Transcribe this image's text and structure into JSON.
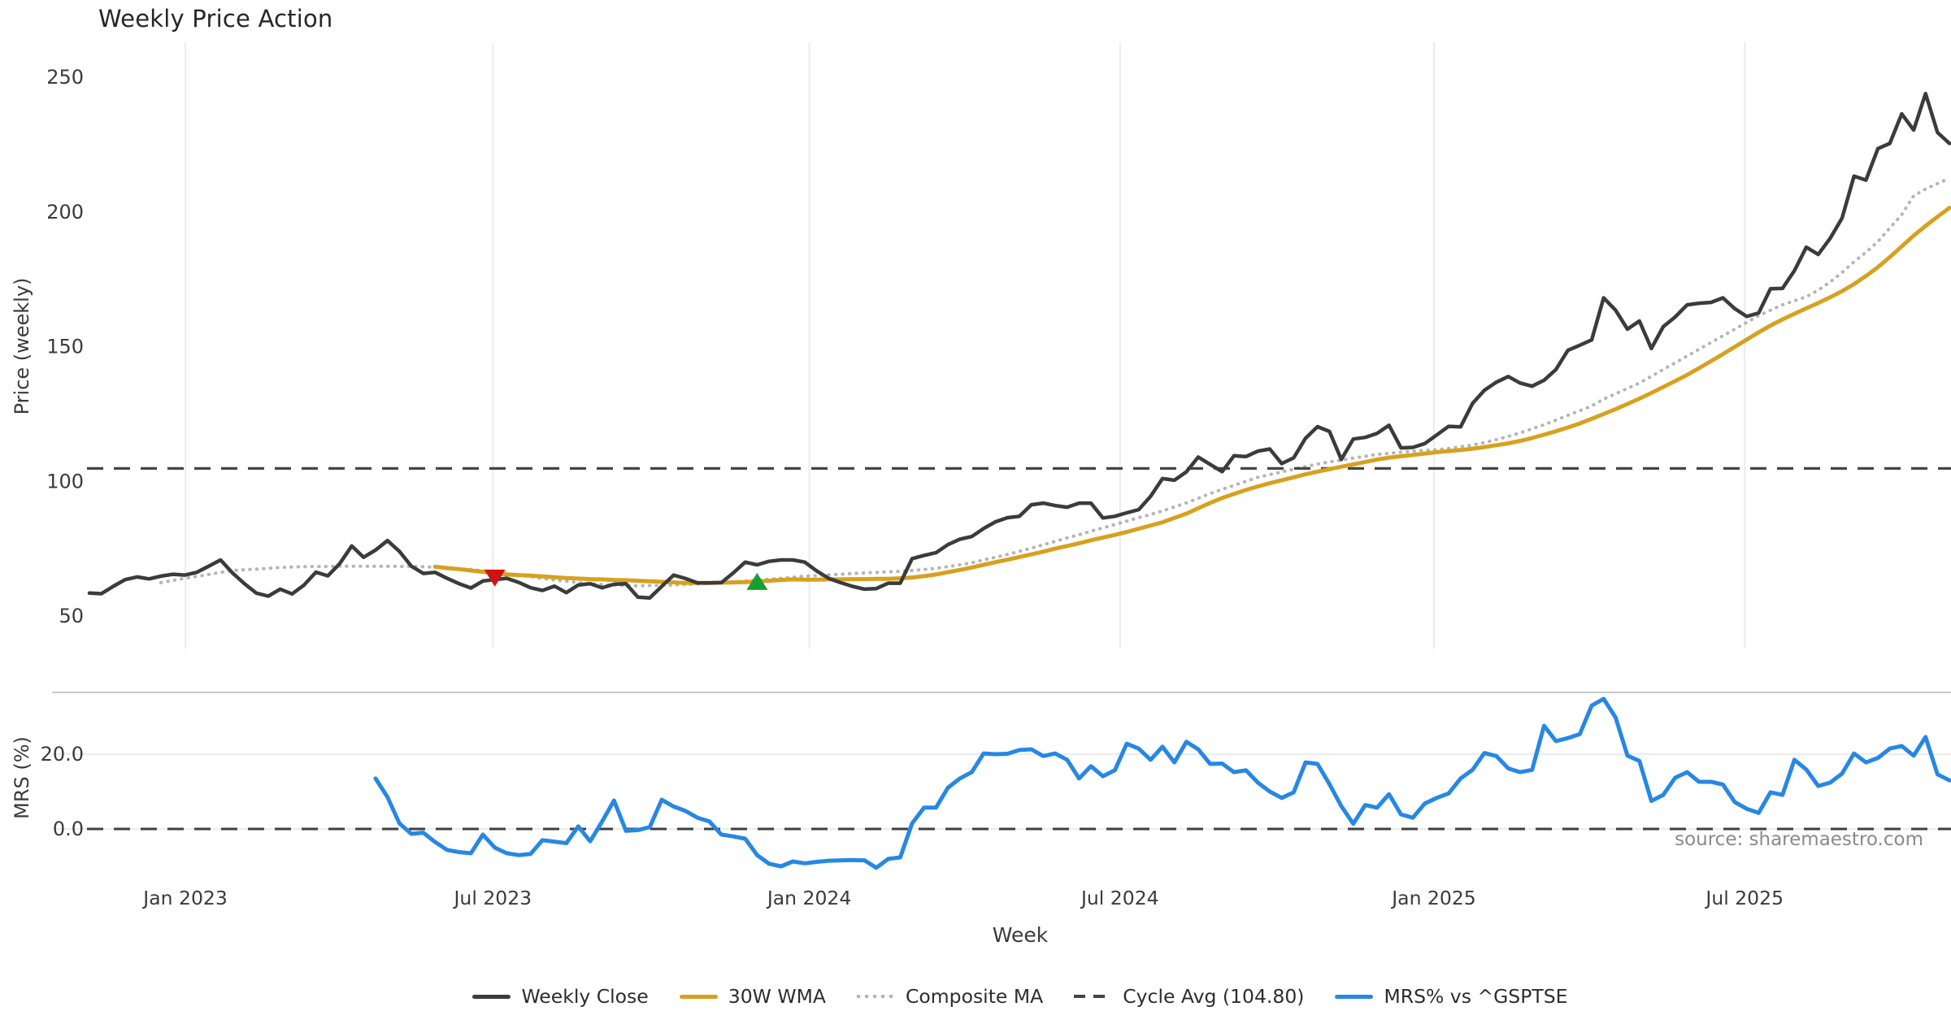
{
  "title": "Weekly Price Action",
  "source_note": "source: sharemaestro.com",
  "axes": {
    "price": {
      "label": "Price (weekly)",
      "ticks": [
        "250",
        "200",
        "150",
        "100",
        "50"
      ],
      "tick_values": [
        250,
        200,
        150,
        100,
        50
      ]
    },
    "mrs": {
      "label": "MRS (%)",
      "ticks": [
        "20.0",
        "0.0"
      ],
      "tick_values": [
        20,
        0
      ]
    },
    "x": {
      "label": "Week",
      "ticks": [
        "Jan 2023",
        "Jul 2023",
        "Jan 2024",
        "Jul 2024",
        "Jan 2025",
        "Jul 2025"
      ],
      "tick_weeks": [
        8.05,
        33.84,
        60.38,
        86.44,
        112.77,
        138.83
      ]
    }
  },
  "legend": [
    {
      "label": "Weekly Close",
      "color": "#3b3b3b",
      "style": "solid"
    },
    {
      "label": "30W WMA",
      "color": "#d7a11f",
      "style": "solid"
    },
    {
      "label": "Composite MA",
      "color": "#b5b5b5",
      "style": "dotted"
    },
    {
      "label": "Cycle Avg (104.80)",
      "color": "#454545",
      "style": "dashed"
    },
    {
      "label": "MRS% vs ^GSPTSE",
      "color": "#2787e4",
      "style": "solid"
    }
  ],
  "chart_data": {
    "type": "line",
    "x_unit": "week_index_from_2022-11-07",
    "weeks_total": 157,
    "grid": {
      "top_panel_vertical": true,
      "bottom_panel_horizontal": true
    },
    "panels": [
      {
        "name": "price",
        "ylabel": "Price (weekly)",
        "ylim": [
          45,
          255
        ],
        "series": [
          {
            "name": "Weekly Close",
            "color": "#3b3b3b",
            "style": "solid",
            "width": 4.5,
            "start_week": 0,
            "values": [
              58.5,
              58.3,
              61.0,
              63.5,
              64.5,
              63.8,
              64.8,
              65.5,
              65.2,
              66.2,
              68.5,
              70.8,
              66.0,
              62.0,
              58.5,
              57.4,
              60.0,
              58.2,
              61.5,
              66.3,
              64.9,
              69.5,
              76.0,
              71.8,
              74.5,
              78.0,
              74.0,
              68.5,
              65.8,
              66.2,
              64.0,
              62.0,
              60.4,
              63.0,
              63.5,
              64.0,
              62.5,
              60.5,
              59.5,
              61.1,
              58.7,
              61.5,
              62.0,
              60.5,
              61.8,
              62.0,
              57.0,
              56.7,
              61.0,
              65.2,
              63.9,
              62.3,
              62.3,
              62.4,
              66.0,
              70.0,
              69.0,
              70.3,
              70.8,
              70.8,
              70.0,
              66.7,
              64.0,
              62.4,
              61.0,
              60.0,
              60.2,
              62.2,
              62.2,
              71.3,
              72.5,
              73.5,
              76.5,
              78.5,
              79.5,
              82.5,
              85.0,
              86.5,
              87.0,
              91.3,
              91.9,
              91.0,
              90.4,
              91.9,
              91.9,
              86.4,
              87.0,
              88.3,
              89.5,
              94.4,
              101.0,
              100.4,
              103.5,
              109.0,
              106.3,
              103.6,
              109.5,
              109.2,
              111.2,
              112.0,
              106.6,
              108.7,
              116.0,
              120.3,
              118.5,
              108.1,
              115.7,
              116.3,
              117.8,
              120.8,
              112.4,
              112.6,
              114.0,
              117.2,
              120.4,
              120.2,
              128.9,
              133.8,
              136.8,
              138.9,
              136.5,
              135.3,
              137.5,
              141.5,
              148.6,
              150.5,
              152.5,
              168.1,
              163.5,
              156.5,
              159.5,
              149.3,
              157.4,
              161.0,
              165.5,
              166.1,
              166.4,
              168.1,
              164.1,
              161.2,
              162.5,
              171.5,
              171.6,
              178.2,
              186.9,
              184.2,
              190.2,
              197.7,
              213.3,
              211.8,
              223.5,
              225.4,
              236.4,
              230.4,
              243.9,
              229.5,
              225.4
            ]
          },
          {
            "name": "30W WMA",
            "color": "#d7a11f",
            "style": "solid",
            "width": 5,
            "start_week": 29,
            "values": [
              68.3,
              67.8,
              67.4,
              66.9,
              66.4,
              65.9,
              65.4,
              65.2,
              65.0,
              64.7,
              64.4,
              64.1,
              63.9,
              63.7,
              63.6,
              63.4,
              63.3,
              63.1,
              62.9,
              62.7,
              62.5,
              62.3,
              62.3,
              62.3,
              62.4,
              62.5,
              62.6,
              62.8,
              63.1,
              63.4,
              63.6,
              63.5,
              63.5,
              63.6,
              63.6,
              63.7,
              63.7,
              63.8,
              63.8,
              64.0,
              64.3,
              64.8,
              65.4,
              66.3,
              67.1,
              68.0,
              69.0,
              70.0,
              70.9,
              71.9,
              72.9,
              73.9,
              75.0,
              76.0,
              77.0,
              78.1,
              79.1,
              80.1,
              81.2,
              82.4,
              83.6,
              84.8,
              86.4,
              88.0,
              90.0,
              92.0,
              93.8,
              95.3,
              96.8,
              98.1,
              99.3,
              100.4,
              101.5,
              102.6,
              103.6,
              104.5,
              105.4,
              106.3,
              107.2,
              108.1,
              108.8,
              109.3,
              109.8,
              110.3,
              110.8,
              111.2,
              111.6,
              112.1,
              112.7,
              113.4,
              114.1,
              115.0,
              116.1,
              117.3,
              118.6,
              120.0,
              121.5,
              123.2,
              125.0,
              126.8,
              128.7,
              130.7,
              132.8,
              135.0,
              137.2,
              139.5,
              142.0,
              144.6,
              147.2,
              149.9,
              152.6,
              155.3,
              157.8,
              160.1,
              162.2,
              164.2,
              166.2,
              168.3,
              170.6,
              173.2,
              176.2,
              179.5,
              183.2,
              187.2,
              191.2,
              194.8,
              198.2,
              201.5
            ]
          },
          {
            "name": "Composite MA",
            "color": "#b5b5b5",
            "style": "dotted",
            "width": 4,
            "start_week": 6,
            "values": [
              62.4,
              63.2,
              64.0,
              64.7,
              65.4,
              66.2,
              66.9,
              67.2,
              67.4,
              67.7,
              68.0,
              68.2,
              68.3,
              68.4,
              68.4,
              68.5,
              68.5,
              68.5,
              68.5,
              68.5,
              68.4,
              68.4,
              68.3,
              68.1,
              67.9,
              67.6,
              67.3,
              66.8,
              66.3,
              65.8,
              65.2,
              64.6,
              63.9,
              63.4,
              62.9,
              62.4,
              62.0,
              61.7,
              61.4,
              61.3,
              61.2,
              61.3,
              61.4,
              61.5,
              61.7,
              61.9,
              62.1,
              62.4,
              62.7,
              63.0,
              63.3,
              63.7,
              64.0,
              64.4,
              64.8,
              65.0,
              65.3,
              65.5,
              65.8,
              66.0,
              66.2,
              66.4,
              66.6,
              66.9,
              67.3,
              67.7,
              68.3,
              69.0,
              69.8,
              70.8,
              71.8,
              72.9,
              74.0,
              75.2,
              76.5,
              77.7,
              79.0,
              80.2,
              81.5,
              82.7,
              84.0,
              85.2,
              86.5,
              87.7,
              89.0,
              90.5,
              92.0,
              93.7,
              95.5,
              97.0,
              98.5,
              100.0,
              101.5,
              102.5,
              103.5,
              104.5,
              105.5,
              106.4,
              107.2,
              107.9,
              108.6,
              109.3,
              110.0,
              110.4,
              110.8,
              111.2,
              111.5,
              111.7,
              112.2,
              112.8,
              113.5,
              114.4,
              115.5,
              116.7,
              118.0,
              119.5,
              121.0,
              122.7,
              124.5,
              126.2,
              128.0,
              130.5,
              132.5,
              134.5,
              136.5,
              139.0,
              141.5,
              144.0,
              146.5,
              149.0,
              151.5,
              154.0,
              156.5,
              159.0,
              161.5,
              163.5,
              165.5,
              167.0,
              168.5,
              171.0,
              174.0,
              177.5,
              181.5,
              185.0,
              189.0,
              194.0,
              199.0,
              206.0,
              208.5,
              210.5,
              212.5
            ]
          },
          {
            "name": "Cycle Avg",
            "color": "#454545",
            "style": "dashed",
            "width": 3.2,
            "constant": 104.8
          }
        ],
        "markers": [
          {
            "name": "sell-signal",
            "shape": "triangle-down",
            "color": "#cf1312",
            "week": 34,
            "value": 64.2
          },
          {
            "name": "buy-signal",
            "shape": "triangle-up",
            "color": "#179f30",
            "week": 56,
            "value": 63.0
          }
        ]
      },
      {
        "name": "mrs",
        "ylabel": "MRS (%)",
        "ylim": [
          -15,
          36.5
        ],
        "series": [
          {
            "name": "MRS% vs ^GSPTSE",
            "color": "#2787e4",
            "style": "solid",
            "width": 5,
            "start_week": 24,
            "values": [
              13.5,
              8.5,
              1.5,
              -1.3,
              -1.0,
              -3.5,
              -5.6,
              -6.2,
              -6.5,
              -1.5,
              -5.0,
              -6.5,
              -7.0,
              -6.7,
              -3.0,
              -3.4,
              -3.8,
              0.7,
              -3.3,
              2.0,
              7.6,
              -0.5,
              -0.3,
              0.5,
              7.8,
              6.0,
              4.8,
              3.0,
              2.0,
              -1.5,
              -2.0,
              -2.6,
              -7.0,
              -9.3,
              -10.0,
              -8.7,
              -9.2,
              -8.8,
              -8.5,
              -8.4,
              -8.3,
              -8.4,
              -10.4,
              -8.0,
              -7.6,
              1.5,
              5.7,
              5.7,
              11.0,
              13.5,
              15.2,
              20.2,
              20.0,
              20.1,
              21.1,
              21.3,
              19.5,
              20.2,
              18.5,
              13.5,
              16.8,
              14.1,
              15.7,
              22.8,
              21.5,
              18.5,
              22.0,
              17.8,
              23.3,
              21.3,
              17.4,
              17.5,
              15.2,
              15.7,
              12.4,
              10.0,
              8.3,
              9.8,
              17.8,
              17.4,
              12.0,
              6.1,
              1.4,
              6.4,
              5.7,
              9.3,
              3.9,
              3.0,
              6.8,
              8.3,
              9.5,
              13.5,
              15.8,
              20.3,
              19.5,
              16.2,
              15.2,
              15.8,
              27.6,
              23.5,
              24.3,
              25.4,
              33.0,
              34.8,
              29.8,
              19.6,
              18.2,
              7.5,
              9.1,
              13.7,
              15.2,
              12.6,
              12.6,
              11.9,
              7.2,
              5.4,
              4.3,
              9.8,
              9.1,
              18.5,
              15.9,
              11.5,
              12.4,
              14.8,
              20.2,
              17.8,
              19.0,
              21.5,
              22.2,
              19.6,
              24.6,
              14.6,
              13.0
            ]
          },
          {
            "name": "Zero Line",
            "color": "#3f3f3f",
            "style": "dashed",
            "width": 3,
            "constant": 0
          }
        ]
      }
    ]
  }
}
